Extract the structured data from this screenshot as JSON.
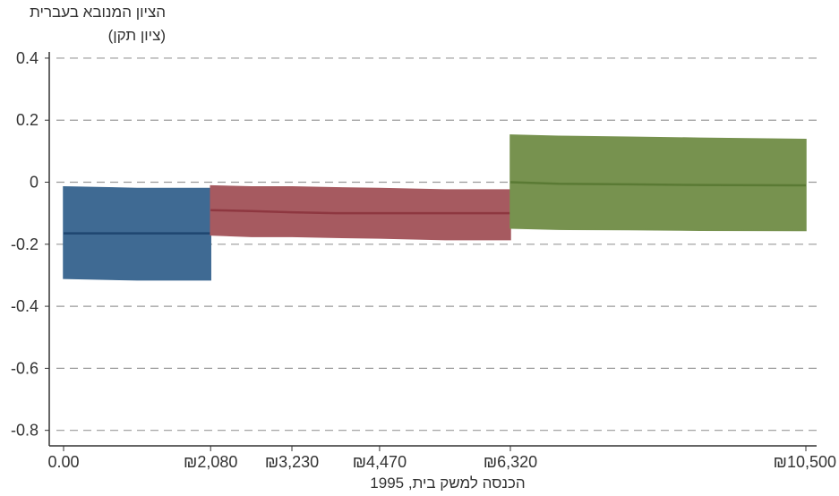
{
  "chart_data": {
    "type": "area",
    "ylabel_line1": "הציון המנובא בעברית",
    "ylabel_line2": "(ציון תקן)",
    "xlabel": "הכנסה למשק בית, 1995",
    "ylim": [
      -0.85,
      0.42
    ],
    "y_ticks": [
      0.4,
      0.2,
      0,
      -0.2,
      -0.4,
      -0.6,
      -0.8
    ],
    "y_tick_labels": [
      "0.4",
      "0.2",
      "0",
      "-0.2",
      "-0.4",
      "-0.6",
      "-0.8"
    ],
    "xlim": [
      0,
      10500
    ],
    "x_ticks": [
      0,
      2080,
      3230,
      4470,
      6320,
      10500
    ],
    "x_tick_labels": [
      "0.00",
      "₪2,080",
      "₪3,230",
      "₪4,470",
      "₪6,320",
      "₪10,500"
    ],
    "grid": "horizontal dashed",
    "series": [
      {
        "color": "#3f6a93",
        "line_color": "#1f4670",
        "x": [
          0,
          1040,
          2080
        ],
        "mid": [
          -0.165,
          -0.165,
          -0.165
        ],
        "upper": [
          -0.015,
          -0.02,
          -0.02
        ],
        "lower": [
          -0.31,
          -0.315,
          -0.315
        ]
      },
      {
        "color": "#a65a60",
        "line_color": "#8e3740",
        "x": [
          2080,
          2660,
          3230,
          3850,
          4470,
          5400,
          6320
        ],
        "mid": [
          -0.09,
          -0.093,
          -0.097,
          -0.1,
          -0.1,
          -0.1,
          -0.1
        ],
        "upper": [
          -0.012,
          -0.015,
          -0.015,
          -0.018,
          -0.02,
          -0.025,
          -0.025
        ],
        "lower": [
          -0.17,
          -0.175,
          -0.175,
          -0.178,
          -0.18,
          -0.185,
          -0.185
        ]
      },
      {
        "color": "#77924f",
        "line_color": "#5a7a34",
        "x": [
          6320,
          7000,
          8000,
          9000,
          10500
        ],
        "mid": [
          0,
          -0.005,
          -0.007,
          -0.009,
          -0.01
        ],
        "upper": [
          0.152,
          0.148,
          0.145,
          0.142,
          0.138
        ],
        "lower": [
          -0.148,
          -0.152,
          -0.153,
          -0.155,
          -0.156
        ]
      }
    ]
  }
}
